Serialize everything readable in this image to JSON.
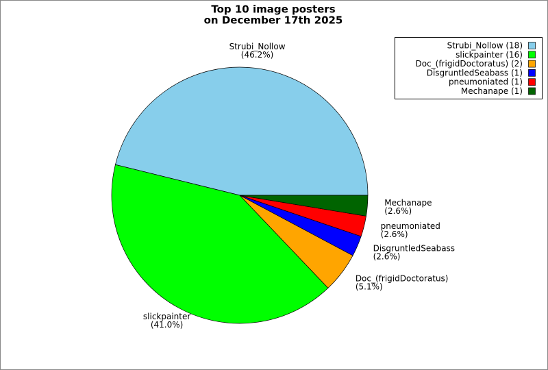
{
  "chart_data": {
    "type": "pie",
    "title": [
      "Top 10 image posters",
      "on December 17th 2025"
    ],
    "categories": [
      "Strubi_Nollow",
      "slickpainter",
      "Doc_(frigidDoctoratus)",
      "DisgruntledSeabass",
      "pneumoniated",
      "Mechanape"
    ],
    "values": [
      46.2,
      41.0,
      5.1,
      2.6,
      2.6,
      2.6
    ],
    "value_labels": [
      "(46.2%)",
      "(41.0%)",
      "(5.1%)",
      "(2.6%)",
      "(2.6%)",
      "(2.6%)"
    ],
    "colors": [
      "#87ceeb",
      "#00ff00",
      "#ffa500",
      "#0000ff",
      "#ff0000",
      "#006400"
    ],
    "legend_labels": [
      "Strubi_Nollow (18)",
      "slickpainter (16)",
      "Doc_(frigidDoctoratus) (2)",
      "DisgruntledSeabass (1)",
      "pneumoniated (1)",
      "Mechanape (1)"
    ],
    "legend_position": "upper right"
  }
}
